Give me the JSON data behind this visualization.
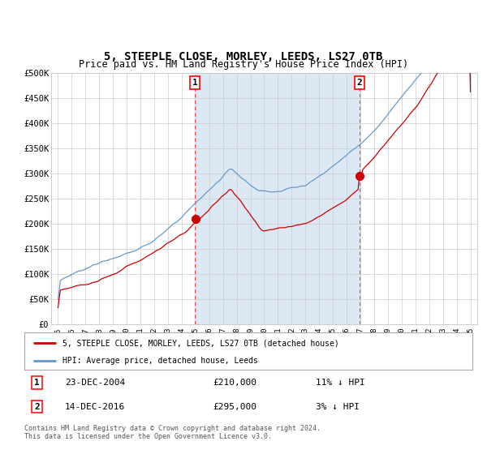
{
  "title": "5, STEEPLE CLOSE, MORLEY, LEEDS, LS27 0TB",
  "subtitle": "Price paid vs. HM Land Registry's House Price Index (HPI)",
  "title_fontsize": 10,
  "subtitle_fontsize": 8.5,
  "bg_color": "#dce9f5",
  "plot_bg_color": "#ffffff",
  "grid_color": "#cccccc",
  "sale1_date_num": 2004.97,
  "sale1_price": 210000,
  "sale2_date_num": 2016.95,
  "sale2_price": 295000,
  "ylim": [
    0,
    500000
  ],
  "xlim_start": 1994.5,
  "xlim_end": 2025.5,
  "ytick_values": [
    0,
    50000,
    100000,
    150000,
    200000,
    250000,
    300000,
    350000,
    400000,
    450000,
    500000
  ],
  "ytick_labels": [
    "£0",
    "£50K",
    "£100K",
    "£150K",
    "£200K",
    "£250K",
    "£300K",
    "£350K",
    "£400K",
    "£450K",
    "£500K"
  ],
  "xtick_years": [
    1995,
    1996,
    1997,
    1998,
    1999,
    2000,
    2001,
    2002,
    2003,
    2004,
    2005,
    2006,
    2007,
    2008,
    2009,
    2010,
    2011,
    2012,
    2013,
    2014,
    2015,
    2016,
    2017,
    2018,
    2019,
    2020,
    2021,
    2022,
    2023,
    2024,
    2025
  ],
  "hpi_color": "#6699cc",
  "price_color": "#cc0000",
  "marker_color": "#cc0000",
  "legend_label_hpi": "HPI: Average price, detached house, Leeds",
  "legend_label_price": "5, STEEPLE CLOSE, MORLEY, LEEDS, LS27 0TB (detached house)",
  "note_label1": "1",
  "note_date1": "23-DEC-2004",
  "note_price1": "£210,000",
  "note_hpi1": "11% ↓ HPI",
  "note_label2": "2",
  "note_date2": "14-DEC-2016",
  "note_price2": "£295,000",
  "note_hpi2": "3% ↓ HPI",
  "footer": "Contains HM Land Registry data © Crown copyright and database right 2024.\nThis data is licensed under the Open Government Licence v3.0."
}
